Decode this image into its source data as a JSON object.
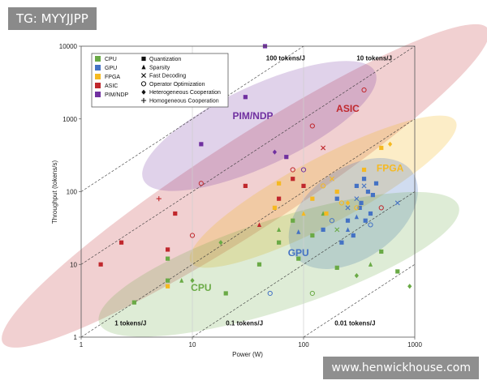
{
  "header_tag": "TG: MYYJJPP",
  "watermark": "www.henwickhouse.com",
  "chart_data": {
    "type": "scatter",
    "xlabel": "Power (W)",
    "ylabel": "Throughput (tokens/s)",
    "xscale": "log",
    "yscale": "log",
    "xlim": [
      1,
      1000
    ],
    "ylim": [
      1,
      10000
    ],
    "xticks": [
      "1",
      "10",
      "100",
      "1000"
    ],
    "yticks": [
      "1",
      "10",
      "100",
      "1000",
      "10000"
    ],
    "grid": true,
    "legend_position": "top-left",
    "platforms": [
      {
        "name": "CPU",
        "color": "#6aaa46"
      },
      {
        "name": "GPU",
        "color": "#4472c4"
      },
      {
        "name": "FPGA",
        "color": "#f5b921"
      },
      {
        "name": "ASIC",
        "color": "#c0282d"
      },
      {
        "name": "PIM/NDP",
        "color": "#7030a0"
      }
    ],
    "techniques": [
      {
        "name": "Quantization",
        "marker": "square"
      },
      {
        "name": "Sparsity",
        "marker": "triangle"
      },
      {
        "name": "Fast Decoding",
        "marker": "cross"
      },
      {
        "name": "Operator Optimization",
        "marker": "circle"
      },
      {
        "name": "Heterogeneous Cooperation",
        "marker": "diamond"
      },
      {
        "name": "Homogeneous Cooperation",
        "marker": "plus"
      }
    ],
    "efficiency_lines": [
      {
        "label": "100 tokens/J",
        "value": 100
      },
      {
        "label": "10 tokens/J",
        "value": 10
      },
      {
        "label": "1 tokens/J",
        "value": 1
      },
      {
        "label": "0.1 tokens/J",
        "value": 0.1
      },
      {
        "label": "0.01 tokens/J",
        "value": 0.01
      }
    ],
    "region_labels": [
      {
        "platform": "ASIC",
        "text": "ASIC"
      },
      {
        "platform": "PIM/NDP",
        "text": "PIM/NDP"
      },
      {
        "platform": "FPGA",
        "text": "FPGA"
      },
      {
        "platform": "GPU",
        "text": "GPU"
      },
      {
        "platform": "CPU",
        "text": "CPU"
      }
    ],
    "points": [
      {
        "p": "CPU",
        "m": "square",
        "x": 3,
        "y": 3
      },
      {
        "p": "CPU",
        "m": "square",
        "x": 6,
        "y": 6
      },
      {
        "p": "CPU",
        "m": "square",
        "x": 6,
        "y": 12
      },
      {
        "p": "CPU",
        "m": "square",
        "x": 20,
        "y": 4
      },
      {
        "p": "CPU",
        "m": "square",
        "x": 40,
        "y": 10
      },
      {
        "p": "CPU",
        "m": "square",
        "x": 60,
        "y": 20
      },
      {
        "p": "CPU",
        "m": "square",
        "x": 80,
        "y": 40
      },
      {
        "p": "CPU",
        "m": "square",
        "x": 90,
        "y": 12
      },
      {
        "p": "CPU",
        "m": "square",
        "x": 120,
        "y": 25
      },
      {
        "p": "CPU",
        "m": "square",
        "x": 200,
        "y": 9
      },
      {
        "p": "CPU",
        "m": "square",
        "x": 500,
        "y": 15
      },
      {
        "p": "CPU",
        "m": "square",
        "x": 700,
        "y": 8
      },
      {
        "p": "CPU",
        "m": "triangle",
        "x": 8,
        "y": 6
      },
      {
        "p": "CPU",
        "m": "triangle",
        "x": 60,
        "y": 30
      },
      {
        "p": "CPU",
        "m": "triangle",
        "x": 150,
        "y": 50
      },
      {
        "p": "CPU",
        "m": "triangle",
        "x": 400,
        "y": 10
      },
      {
        "p": "CPU",
        "m": "diamond",
        "x": 10,
        "y": 6
      },
      {
        "p": "CPU",
        "m": "diamond",
        "x": 18,
        "y": 20
      },
      {
        "p": "CPU",
        "m": "diamond",
        "x": 300,
        "y": 7
      },
      {
        "p": "CPU",
        "m": "diamond",
        "x": 900,
        "y": 5
      },
      {
        "p": "CPU",
        "m": "cross",
        "x": 200,
        "y": 30
      },
      {
        "p": "CPU",
        "m": "circle",
        "x": 120,
        "y": 4
      },
      {
        "p": "GPU",
        "m": "square",
        "x": 150,
        "y": 30
      },
      {
        "p": "GPU",
        "m": "square",
        "x": 200,
        "y": 80
      },
      {
        "p": "GPU",
        "m": "square",
        "x": 250,
        "y": 40
      },
      {
        "p": "GPU",
        "m": "square",
        "x": 300,
        "y": 120
      },
      {
        "p": "GPU",
        "m": "square",
        "x": 320,
        "y": 60
      },
      {
        "p": "GPU",
        "m": "square",
        "x": 350,
        "y": 150
      },
      {
        "p": "GPU",
        "m": "square",
        "x": 380,
        "y": 100
      },
      {
        "p": "GPU",
        "m": "square",
        "x": 400,
        "y": 50
      },
      {
        "p": "GPU",
        "m": "square",
        "x": 420,
        "y": 90
      },
      {
        "p": "GPU",
        "m": "square",
        "x": 450,
        "y": 130
      },
      {
        "p": "GPU",
        "m": "square",
        "x": 220,
        "y": 20
      },
      {
        "p": "GPU",
        "m": "square",
        "x": 280,
        "y": 25
      },
      {
        "p": "GPU",
        "m": "square",
        "x": 330,
        "y": 70
      },
      {
        "p": "GPU",
        "m": "square",
        "x": 360,
        "y": 40
      },
      {
        "p": "GPU",
        "m": "triangle",
        "x": 250,
        "y": 30
      },
      {
        "p": "GPU",
        "m": "triangle",
        "x": 300,
        "y": 45
      },
      {
        "p": "GPU",
        "m": "triangle",
        "x": 90,
        "y": 28
      },
      {
        "p": "GPU",
        "m": "cross",
        "x": 250,
        "y": 60
      },
      {
        "p": "GPU",
        "m": "cross",
        "x": 300,
        "y": 80
      },
      {
        "p": "GPU",
        "m": "cross",
        "x": 350,
        "y": 120
      },
      {
        "p": "GPU",
        "m": "cross",
        "x": 700,
        "y": 70
      },
      {
        "p": "GPU",
        "m": "circle",
        "x": 50,
        "y": 4
      },
      {
        "p": "GPU",
        "m": "circle",
        "x": 180,
        "y": 40
      },
      {
        "p": "GPU",
        "m": "circle",
        "x": 400,
        "y": 35
      },
      {
        "p": "FPGA",
        "m": "square",
        "x": 6,
        "y": 5
      },
      {
        "p": "FPGA",
        "m": "square",
        "x": 55,
        "y": 60
      },
      {
        "p": "FPGA",
        "m": "square",
        "x": 60,
        "y": 130
      },
      {
        "p": "FPGA",
        "m": "square",
        "x": 120,
        "y": 80
      },
      {
        "p": "FPGA",
        "m": "square",
        "x": 160,
        "y": 50
      },
      {
        "p": "FPGA",
        "m": "square",
        "x": 200,
        "y": 100
      },
      {
        "p": "FPGA",
        "m": "square",
        "x": 350,
        "y": 200
      },
      {
        "p": "FPGA",
        "m": "square",
        "x": 500,
        "y": 400
      },
      {
        "p": "FPGA",
        "m": "triangle",
        "x": 100,
        "y": 50
      },
      {
        "p": "FPGA",
        "m": "diamond",
        "x": 600,
        "y": 450
      },
      {
        "p": "FPGA",
        "m": "diamond",
        "x": 250,
        "y": 70
      },
      {
        "p": "FPGA",
        "m": "circle",
        "x": 150,
        "y": 120
      },
      {
        "p": "FPGA",
        "m": "circle",
        "x": 220,
        "y": 70
      },
      {
        "p": "FPGA",
        "m": "circle",
        "x": 300,
        "y": 60
      },
      {
        "p": "FPGA",
        "m": "cross",
        "x": 180,
        "y": 150
      },
      {
        "p": "ASIC",
        "m": "square",
        "x": 1.5,
        "y": 10
      },
      {
        "p": "ASIC",
        "m": "square",
        "x": 2.3,
        "y": 20
      },
      {
        "p": "ASIC",
        "m": "square",
        "x": 6,
        "y": 16
      },
      {
        "p": "ASIC",
        "m": "square",
        "x": 7,
        "y": 50
      },
      {
        "p": "ASIC",
        "m": "square",
        "x": 30,
        "y": 120
      },
      {
        "p": "ASIC",
        "m": "square",
        "x": 60,
        "y": 80
      },
      {
        "p": "ASIC",
        "m": "square",
        "x": 80,
        "y": 150
      },
      {
        "p": "ASIC",
        "m": "square",
        "x": 100,
        "y": 120
      },
      {
        "p": "ASIC",
        "m": "circle",
        "x": 10,
        "y": 25
      },
      {
        "p": "ASIC",
        "m": "circle",
        "x": 12,
        "y": 130
      },
      {
        "p": "ASIC",
        "m": "circle",
        "x": 80,
        "y": 200
      },
      {
        "p": "ASIC",
        "m": "circle",
        "x": 120,
        "y": 800
      },
      {
        "p": "ASIC",
        "m": "circle",
        "x": 350,
        "y": 2500
      },
      {
        "p": "ASIC",
        "m": "circle",
        "x": 500,
        "y": 60
      },
      {
        "p": "ASIC",
        "m": "cross",
        "x": 150,
        "y": 400
      },
      {
        "p": "ASIC",
        "m": "triangle",
        "x": 40,
        "y": 35
      },
      {
        "p": "PIM/NDP",
        "m": "square",
        "x": 12,
        "y": 450
      },
      {
        "p": "PIM/NDP",
        "m": "square",
        "x": 30,
        "y": 2000
      },
      {
        "p": "PIM/NDP",
        "m": "square",
        "x": 45,
        "y": 10000
      },
      {
        "p": "PIM/NDP",
        "m": "square",
        "x": 70,
        "y": 300
      },
      {
        "p": "PIM/NDP",
        "m": "diamond",
        "x": 55,
        "y": 350
      },
      {
        "p": "PIM/NDP",
        "m": "circle",
        "x": 100,
        "y": 200
      },
      {
        "p": "ASIC",
        "m": "plus",
        "x": 5,
        "y": 80
      }
    ]
  }
}
